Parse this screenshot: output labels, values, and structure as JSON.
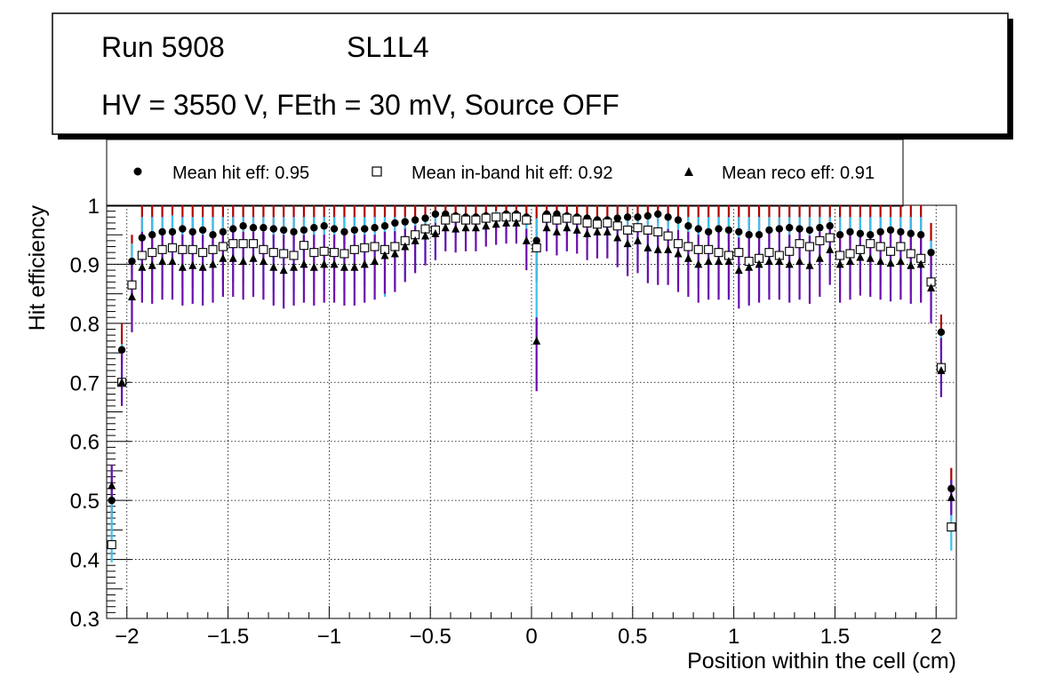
{
  "chart_data": {
    "type": "scatter",
    "title_lines": {
      "run": "Run 5908",
      "layer": "SL1L4",
      "conditions": "HV = 3550 V, FEth = 30 mV, Source OFF"
    },
    "xlabel": "Position within the cell (cm)",
    "ylabel": "Hit efficiency",
    "xlim": [
      -2.1,
      2.1
    ],
    "ylim": [
      0.3,
      1.0
    ],
    "x_ticks": [
      -2,
      -1.5,
      -1,
      -0.5,
      0,
      0.5,
      1,
      1.5,
      2
    ],
    "x_tick_labels": [
      "−2",
      "−1.5",
      "−1",
      "−0.5",
      "0",
      "0.5",
      "1",
      "1.5",
      "2"
    ],
    "y_ticks": [
      0.3,
      0.4,
      0.5,
      0.6,
      0.7,
      0.8,
      0.9,
      1.0
    ],
    "y_tick_labels": [
      "0.3",
      "0.4",
      "0.5",
      "0.6",
      "0.7",
      "0.8",
      "0.9",
      "1"
    ],
    "grid": true,
    "legend": [
      {
        "label": "Mean hit  eff: 0.95",
        "marker": "circle"
      },
      {
        "label": "Mean in-band hit eff: 0.92",
        "marker": "open-square"
      },
      {
        "label": "Mean reco eff: 0.91",
        "marker": "triangle"
      }
    ],
    "x": [
      -2.075,
      -2.025,
      -1.975,
      -1.925,
      -1.875,
      -1.825,
      -1.775,
      -1.725,
      -1.675,
      -1.625,
      -1.575,
      -1.525,
      -1.475,
      -1.425,
      -1.375,
      -1.325,
      -1.275,
      -1.225,
      -1.175,
      -1.125,
      -1.075,
      -1.025,
      -0.975,
      -0.925,
      -0.875,
      -0.825,
      -0.775,
      -0.725,
      -0.675,
      -0.625,
      -0.575,
      -0.525,
      -0.475,
      -0.425,
      -0.375,
      -0.325,
      -0.275,
      -0.225,
      -0.175,
      -0.125,
      -0.075,
      -0.025,
      0.025,
      0.075,
      0.125,
      0.175,
      0.225,
      0.275,
      0.325,
      0.375,
      0.425,
      0.475,
      0.525,
      0.575,
      0.625,
      0.675,
      0.725,
      0.775,
      0.825,
      0.875,
      0.925,
      0.975,
      1.025,
      1.075,
      1.125,
      1.175,
      1.225,
      1.275,
      1.325,
      1.375,
      1.425,
      1.475,
      1.525,
      1.575,
      1.625,
      1.675,
      1.725,
      1.775,
      1.825,
      1.875,
      1.925,
      1.975,
      2.025,
      2.075
    ],
    "series": [
      {
        "name": "Mean hit  eff: 0.95",
        "marker": "circle",
        "values": [
          0.5,
          0.755,
          0.905,
          0.945,
          0.95,
          0.955,
          0.955,
          0.96,
          0.955,
          0.958,
          0.95,
          0.955,
          0.96,
          0.965,
          0.962,
          0.962,
          0.96,
          0.958,
          0.955,
          0.958,
          0.962,
          0.965,
          0.96,
          0.955,
          0.958,
          0.96,
          0.962,
          0.965,
          0.97,
          0.972,
          0.975,
          0.978,
          0.985,
          0.985,
          0.982,
          0.98,
          0.98,
          0.982,
          0.98,
          0.985,
          0.985,
          0.98,
          0.94,
          0.985,
          0.985,
          0.982,
          0.98,
          0.978,
          0.975,
          0.975,
          0.978,
          0.98,
          0.98,
          0.982,
          0.985,
          0.98,
          0.975,
          0.965,
          0.96,
          0.955,
          0.96,
          0.958,
          0.955,
          0.95,
          0.95,
          0.958,
          0.96,
          0.962,
          0.96,
          0.958,
          0.962,
          0.965,
          0.95,
          0.955,
          0.952,
          0.95,
          0.955,
          0.958,
          0.955,
          0.952,
          0.95,
          0.92,
          0.785,
          0.52
        ],
        "err_low": [
          0.03,
          0.025,
          0.02,
          0.02,
          0.02,
          0.02,
          0.02,
          0.02,
          0.02,
          0.02,
          0.02,
          0.02,
          0.02,
          0.02,
          0.02,
          0.02,
          0.02,
          0.02,
          0.02,
          0.02,
          0.02,
          0.02,
          0.02,
          0.02,
          0.02,
          0.02,
          0.02,
          0.02,
          0.02,
          0.015,
          0.015,
          0.015,
          0.015,
          0.015,
          0.015,
          0.015,
          0.015,
          0.015,
          0.015,
          0.015,
          0.015,
          0.015,
          0.07,
          0.015,
          0.015,
          0.015,
          0.015,
          0.015,
          0.015,
          0.015,
          0.015,
          0.015,
          0.015,
          0.015,
          0.015,
          0.015,
          0.015,
          0.02,
          0.02,
          0.02,
          0.02,
          0.02,
          0.02,
          0.02,
          0.02,
          0.02,
          0.02,
          0.02,
          0.02,
          0.02,
          0.02,
          0.02,
          0.02,
          0.02,
          0.02,
          0.02,
          0.02,
          0.02,
          0.02,
          0.02,
          0.02,
          0.02,
          0.03,
          0.04
        ],
        "err_high": [
          0.04,
          0.045,
          0.045,
          0.055,
          0.05,
          0.045,
          0.045,
          0.04,
          0.045,
          0.042,
          0.05,
          0.045,
          0.04,
          0.035,
          0.038,
          0.038,
          0.04,
          0.042,
          0.045,
          0.042,
          0.038,
          0.035,
          0.04,
          0.045,
          0.042,
          0.04,
          0.038,
          0.035,
          0.03,
          0.028,
          0.025,
          0.022,
          0.015,
          0.015,
          0.018,
          0.02,
          0.02,
          0.018,
          0.02,
          0.015,
          0.015,
          0.02,
          0.06,
          0.015,
          0.015,
          0.018,
          0.02,
          0.022,
          0.025,
          0.025,
          0.022,
          0.02,
          0.02,
          0.018,
          0.015,
          0.02,
          0.025,
          0.035,
          0.04,
          0.045,
          0.04,
          0.042,
          0.045,
          0.05,
          0.05,
          0.042,
          0.04,
          0.038,
          0.04,
          0.042,
          0.038,
          0.035,
          0.05,
          0.045,
          0.048,
          0.05,
          0.045,
          0.042,
          0.045,
          0.048,
          0.05,
          0.05,
          0.03,
          0.035
        ]
      },
      {
        "name": "Mean in-band hit eff: 0.92",
        "marker": "open-square",
        "values": [
          0.425,
          0.7,
          0.865,
          0.915,
          0.92,
          0.925,
          0.928,
          0.925,
          0.925,
          0.92,
          0.925,
          0.93,
          0.935,
          0.935,
          0.935,
          0.925,
          0.92,
          0.918,
          0.915,
          0.932,
          0.92,
          0.922,
          0.92,
          0.918,
          0.925,
          0.928,
          0.93,
          0.925,
          0.93,
          0.94,
          0.95,
          0.96,
          0.958,
          0.975,
          0.978,
          0.975,
          0.975,
          0.978,
          0.98,
          0.98,
          0.98,
          0.975,
          0.928,
          0.978,
          0.975,
          0.978,
          0.975,
          0.97,
          0.968,
          0.97,
          0.965,
          0.958,
          0.962,
          0.958,
          0.955,
          0.948,
          0.935,
          0.93,
          0.925,
          0.925,
          0.92,
          0.915,
          0.92,
          0.905,
          0.91,
          0.92,
          0.915,
          0.922,
          0.935,
          0.93,
          0.94,
          0.945,
          0.915,
          0.918,
          0.925,
          0.935,
          0.93,
          0.922,
          0.93,
          0.918,
          0.91,
          0.87,
          0.725,
          0.455
        ],
        "err_low": [
          0.03,
          0.04,
          0.06,
          0.06,
          0.065,
          0.065,
          0.065,
          0.065,
          0.065,
          0.07,
          0.065,
          0.065,
          0.065,
          0.065,
          0.065,
          0.065,
          0.065,
          0.07,
          0.065,
          0.065,
          0.065,
          0.065,
          0.065,
          0.065,
          0.065,
          0.065,
          0.07,
          0.08,
          0.07,
          0.065,
          0.06,
          0.055,
          0.045,
          0.035,
          0.03,
          0.03,
          0.03,
          0.03,
          0.025,
          0.03,
          0.03,
          0.03,
          0.16,
          0.03,
          0.03,
          0.03,
          0.03,
          0.035,
          0.035,
          0.04,
          0.045,
          0.05,
          0.055,
          0.055,
          0.055,
          0.06,
          0.065,
          0.065,
          0.065,
          0.065,
          0.065,
          0.065,
          0.065,
          0.065,
          0.065,
          0.065,
          0.065,
          0.065,
          0.065,
          0.065,
          0.065,
          0.065,
          0.065,
          0.065,
          0.065,
          0.065,
          0.065,
          0.065,
          0.065,
          0.065,
          0.065,
          0.06,
          0.05,
          0.04
        ],
        "err_high": [
          0.13,
          0.065,
          0.07,
          0.065,
          0.06,
          0.055,
          0.055,
          0.055,
          0.055,
          0.06,
          0.055,
          0.05,
          0.045,
          0.045,
          0.045,
          0.055,
          0.06,
          0.062,
          0.065,
          0.048,
          0.06,
          0.058,
          0.06,
          0.062,
          0.055,
          0.052,
          0.05,
          0.055,
          0.05,
          0.04,
          0.03,
          0.02,
          0.022,
          0.01,
          0.01,
          0.01,
          0.01,
          0.01,
          0.01,
          0.01,
          0.01,
          0.01,
          0.05,
          0.01,
          0.01,
          0.01,
          0.01,
          0.01,
          0.012,
          0.01,
          0.015,
          0.022,
          0.018,
          0.022,
          0.025,
          0.032,
          0.045,
          0.05,
          0.055,
          0.055,
          0.06,
          0.065,
          0.06,
          0.075,
          0.07,
          0.06,
          0.065,
          0.058,
          0.045,
          0.05,
          0.04,
          0.035,
          0.065,
          0.062,
          0.055,
          0.045,
          0.05,
          0.058,
          0.05,
          0.062,
          0.07,
          0.07,
          0.06,
          0.08
        ]
      },
      {
        "name": "Mean reco eff: 0.91",
        "marker": "triangle",
        "values": [
          0.525,
          0.7,
          0.845,
          0.895,
          0.898,
          0.905,
          0.905,
          0.895,
          0.898,
          0.895,
          0.9,
          0.91,
          0.91,
          0.905,
          0.91,
          0.905,
          0.895,
          0.89,
          0.895,
          0.9,
          0.895,
          0.9,
          0.9,
          0.895,
          0.895,
          0.9,
          0.905,
          0.915,
          0.918,
          0.93,
          0.94,
          0.948,
          0.952,
          0.962,
          0.96,
          0.962,
          0.962,
          0.965,
          0.968,
          0.97,
          0.97,
          0.94,
          0.77,
          0.962,
          0.955,
          0.962,
          0.958,
          0.952,
          0.955,
          0.955,
          0.945,
          0.935,
          0.94,
          0.928,
          0.925,
          0.925,
          0.918,
          0.91,
          0.9,
          0.905,
          0.905,
          0.905,
          0.89,
          0.895,
          0.9,
          0.905,
          0.905,
          0.9,
          0.905,
          0.898,
          0.91,
          0.925,
          0.9,
          0.905,
          0.912,
          0.91,
          0.905,
          0.902,
          0.905,
          0.898,
          0.9,
          0.86,
          0.72,
          0.505
        ],
        "err_low": [
          0.03,
          0.04,
          0.06,
          0.06,
          0.065,
          0.065,
          0.065,
          0.065,
          0.065,
          0.065,
          0.065,
          0.065,
          0.065,
          0.065,
          0.065,
          0.065,
          0.065,
          0.065,
          0.065,
          0.065,
          0.065,
          0.065,
          0.065,
          0.065,
          0.065,
          0.065,
          0.065,
          0.065,
          0.065,
          0.06,
          0.055,
          0.05,
          0.045,
          0.04,
          0.04,
          0.04,
          0.04,
          0.035,
          0.035,
          0.035,
          0.035,
          0.05,
          0.085,
          0.04,
          0.04,
          0.04,
          0.04,
          0.045,
          0.045,
          0.045,
          0.05,
          0.055,
          0.055,
          0.06,
          0.06,
          0.06,
          0.065,
          0.065,
          0.065,
          0.065,
          0.065,
          0.065,
          0.065,
          0.065,
          0.065,
          0.065,
          0.065,
          0.065,
          0.065,
          0.065,
          0.065,
          0.06,
          0.065,
          0.065,
          0.065,
          0.065,
          0.065,
          0.065,
          0.065,
          0.065,
          0.065,
          0.06,
          0.045,
          0.03
        ],
        "err_high": [
          0.035,
          0.055,
          0.06,
          0.06,
          0.055,
          0.05,
          0.05,
          0.055,
          0.055,
          0.055,
          0.05,
          0.045,
          0.045,
          0.05,
          0.045,
          0.05,
          0.055,
          0.06,
          0.055,
          0.05,
          0.055,
          0.05,
          0.05,
          0.055,
          0.055,
          0.05,
          0.045,
          0.04,
          0.038,
          0.03,
          0.025,
          0.02,
          0.018,
          0.015,
          0.015,
          0.015,
          0.015,
          0.015,
          0.012,
          0.012,
          0.012,
          0.02,
          0.04,
          0.015,
          0.02,
          0.015,
          0.018,
          0.02,
          0.02,
          0.02,
          0.025,
          0.03,
          0.028,
          0.035,
          0.035,
          0.035,
          0.04,
          0.045,
          0.05,
          0.05,
          0.05,
          0.05,
          0.055,
          0.055,
          0.05,
          0.05,
          0.05,
          0.05,
          0.05,
          0.05,
          0.045,
          0.04,
          0.05,
          0.05,
          0.045,
          0.045,
          0.05,
          0.05,
          0.05,
          0.05,
          0.05,
          0.055,
          0.055,
          0.03
        ]
      }
    ]
  }
}
